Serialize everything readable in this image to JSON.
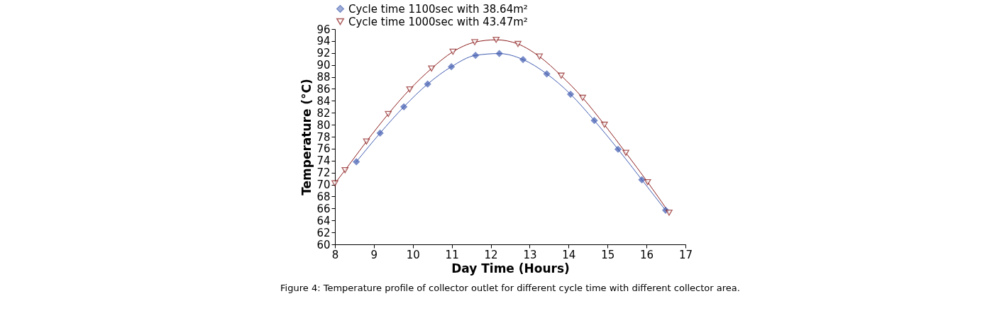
{
  "chart_data": {
    "type": "line",
    "xlabel": "Day Time (Hours)",
    "ylabel": "Temperature (°C)",
    "xlim": [
      8,
      17
    ],
    "xticks": [
      8,
      9,
      10,
      11,
      12,
      13,
      14,
      15,
      16,
      17
    ],
    "ylim": [
      60,
      96
    ],
    "yticks": [
      60,
      62,
      64,
      66,
      68,
      70,
      72,
      74,
      76,
      78,
      80,
      82,
      84,
      86,
      88,
      90,
      92,
      94,
      96
    ],
    "grid": false,
    "legend": "top",
    "series": [
      {
        "name": "Cycle time 1100sec with 38.64m²",
        "color": "#3f5bb0",
        "marker": "diamond",
        "x": [
          8.55,
          9.16,
          9.77,
          10.38,
          10.99,
          11.61,
          12.22,
          12.83,
          13.44,
          14.05,
          14.66,
          15.27,
          15.88,
          16.49
        ],
        "values": [
          73.8,
          78.6,
          83.0,
          86.8,
          89.7,
          91.6,
          91.9,
          90.9,
          88.5,
          85.1,
          80.7,
          75.9,
          70.8,
          65.7
        ]
      },
      {
        "name": "Cycle time 1000sec with 43.47m²",
        "color": "#8b1a1a",
        "marker": "triangle",
        "x": [
          8.0,
          8.26,
          8.81,
          9.37,
          9.92,
          10.48,
          11.03,
          11.59,
          12.14,
          12.7,
          13.25,
          13.81,
          14.36,
          14.92,
          15.47,
          16.03,
          16.58
        ],
        "values": [
          70.2,
          72.4,
          77.2,
          81.8,
          85.9,
          89.4,
          92.2,
          93.8,
          94.2,
          93.5,
          91.4,
          88.2,
          84.5,
          80.0,
          75.3,
          70.4,
          65.3
        ]
      }
    ],
    "annotations": [
      "Figure 4: Temperature profile of collector outlet for different cycle time with different collector area."
    ]
  }
}
